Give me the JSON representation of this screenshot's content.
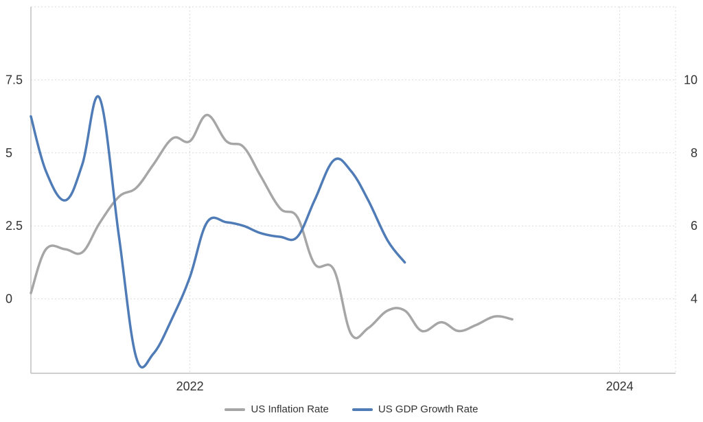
{
  "chart_data": {
    "type": "line",
    "legend_position": "bottom-center",
    "grid": true,
    "x_axis": {
      "ticks": [
        {
          "label": "2022",
          "value": 2022.0
        },
        {
          "label": "2024",
          "value": 2024.0
        }
      ],
      "range": [
        2021.26,
        2024.26
      ]
    },
    "y_left": {
      "ticks": [
        {
          "label": "0",
          "value": 0
        },
        {
          "label": "2.5",
          "value": 2.5
        },
        {
          "label": "5",
          "value": 5
        },
        {
          "label": "7.5",
          "value": 7.5
        }
      ],
      "range": [
        -2.5,
        10
      ]
    },
    "y_right": {
      "ticks": [
        {
          "label": "4",
          "value": 4
        },
        {
          "label": "6",
          "value": 6
        },
        {
          "label": "8",
          "value": 8
        },
        {
          "label": "10",
          "value": 10
        }
      ],
      "range": [
        2,
        12
      ]
    },
    "series": [
      {
        "name": "US Inflation Rate",
        "axis": "left",
        "color": "#a6a6a6",
        "points": [
          [
            2021.26,
            0.2
          ],
          [
            2021.33,
            1.7
          ],
          [
            2021.42,
            1.7
          ],
          [
            2021.5,
            1.6
          ],
          [
            2021.58,
            2.6
          ],
          [
            2021.67,
            3.5
          ],
          [
            2021.75,
            3.8
          ],
          [
            2021.83,
            4.6
          ],
          [
            2021.92,
            5.5
          ],
          [
            2022.0,
            5.4
          ],
          [
            2022.08,
            6.3
          ],
          [
            2022.17,
            5.4
          ],
          [
            2022.25,
            5.2
          ],
          [
            2022.33,
            4.2
          ],
          [
            2022.42,
            3.1
          ],
          [
            2022.5,
            2.8
          ],
          [
            2022.58,
            1.2
          ],
          [
            2022.67,
            1.0
          ],
          [
            2022.75,
            -1.2
          ],
          [
            2022.83,
            -1.0
          ],
          [
            2022.92,
            -0.4
          ],
          [
            2023.0,
            -0.4
          ],
          [
            2023.08,
            -1.1
          ],
          [
            2023.17,
            -0.8
          ],
          [
            2023.25,
            -1.1
          ],
          [
            2023.33,
            -0.9
          ],
          [
            2023.42,
            -0.6
          ],
          [
            2023.5,
            -0.7
          ]
        ]
      },
      {
        "name": "US GDP Growth Rate",
        "axis": "right",
        "color": "#4f7cb6",
        "points": [
          [
            2021.26,
            9.0
          ],
          [
            2021.33,
            7.5
          ],
          [
            2021.42,
            6.7
          ],
          [
            2021.5,
            7.7
          ],
          [
            2021.58,
            9.5
          ],
          [
            2021.67,
            5.7
          ],
          [
            2021.75,
            2.4
          ],
          [
            2021.83,
            2.5
          ],
          [
            2021.92,
            3.5
          ],
          [
            2022.0,
            4.6
          ],
          [
            2022.08,
            6.1
          ],
          [
            2022.17,
            6.1
          ],
          [
            2022.25,
            6.0
          ],
          [
            2022.33,
            5.8
          ],
          [
            2022.42,
            5.7
          ],
          [
            2022.5,
            5.7
          ],
          [
            2022.58,
            6.7
          ],
          [
            2022.67,
            7.8
          ],
          [
            2022.75,
            7.5
          ],
          [
            2022.83,
            6.7
          ],
          [
            2022.92,
            5.6
          ],
          [
            2023.0,
            5.0
          ]
        ]
      }
    ]
  }
}
